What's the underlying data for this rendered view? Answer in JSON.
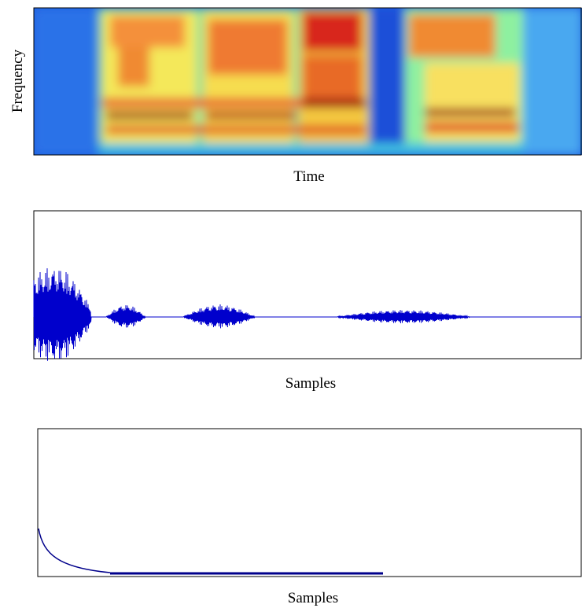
{
  "panels": [
    {
      "ylabel": "Frequency",
      "xlabel": "Time"
    },
    {
      "xlabel": "Samples"
    },
    {
      "xlabel": "Samples"
    }
  ]
}
